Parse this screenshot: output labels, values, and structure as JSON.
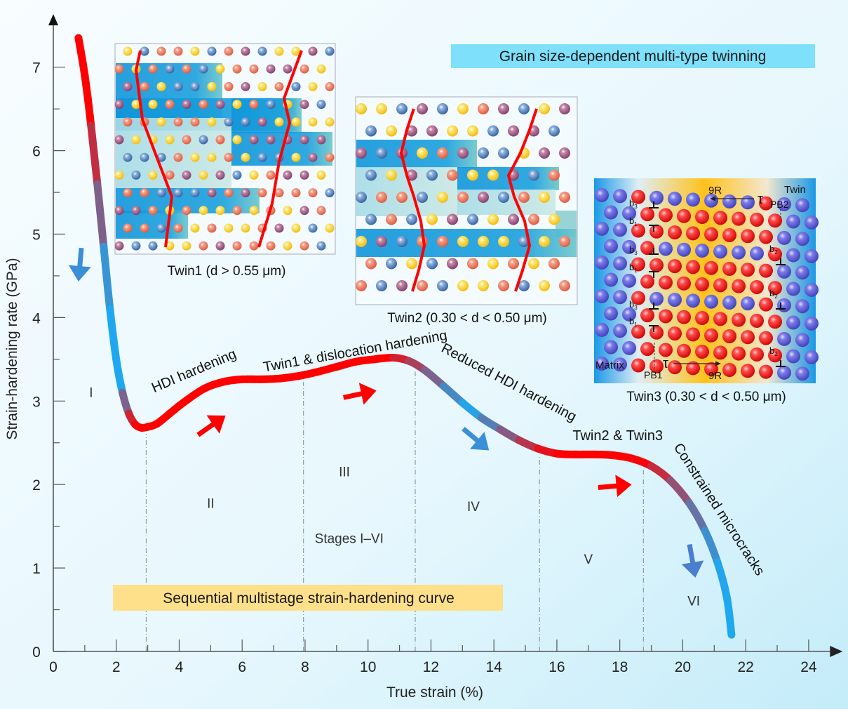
{
  "chart_data": {
    "type": "line",
    "title": "",
    "xlabel": "True strain (%)",
    "ylabel": "Strain-hardening rate (GPa)",
    "xlim": [
      0,
      24.5
    ],
    "ylim": [
      0,
      7.4
    ],
    "xticks": [
      0,
      2,
      4,
      6,
      8,
      10,
      12,
      14,
      16,
      18,
      20,
      22,
      24
    ],
    "xminor": [
      1,
      3,
      5,
      7,
      9,
      11,
      13,
      15,
      17,
      19,
      21,
      23
    ],
    "yticks": [
      0,
      1,
      2,
      3,
      4,
      5,
      6,
      7
    ],
    "yminor": [
      0.5,
      1.5,
      2.5,
      3.5,
      4.5,
      5.5,
      6.5
    ],
    "grid": false,
    "series": [
      {
        "name": "Strain-hardening curve",
        "x": [
          0.8,
          1.0,
          1.2,
          1.4,
          1.6,
          1.8,
          2.0,
          2.2,
          2.4,
          2.6,
          2.8,
          3.0,
          3.3,
          3.7,
          4.2,
          4.8,
          5.4,
          6.0,
          6.6,
          7.2,
          7.8,
          8.4,
          9.0,
          9.6,
          10.2,
          10.8,
          11.3,
          11.8,
          12.4,
          13.0,
          13.6,
          14.2,
          14.8,
          15.4,
          16.0,
          16.6,
          17.2,
          17.8,
          18.4,
          19.0,
          19.6,
          20.2,
          20.7,
          21.1,
          21.4,
          21.55
        ],
        "y": [
          7.35,
          6.9,
          6.3,
          5.6,
          4.85,
          4.1,
          3.5,
          3.1,
          2.85,
          2.72,
          2.68,
          2.69,
          2.73,
          2.85,
          3.0,
          3.15,
          3.23,
          3.26,
          3.26,
          3.27,
          3.3,
          3.35,
          3.41,
          3.47,
          3.5,
          3.52,
          3.48,
          3.37,
          3.18,
          2.98,
          2.8,
          2.66,
          2.53,
          2.43,
          2.37,
          2.36,
          2.36,
          2.35,
          2.31,
          2.22,
          2.05,
          1.78,
          1.45,
          1.07,
          0.65,
          0.2
        ]
      }
    ],
    "stage_boundaries": [
      2.95,
      7.95,
      11.5,
      15.45,
      18.75
    ],
    "stages": [
      {
        "label": "I",
        "x": 1.2,
        "y": 3.05
      },
      {
        "label": "II",
        "x": 5.0,
        "y": 1.72
      },
      {
        "label": "III",
        "x": 9.25,
        "y": 2.1
      },
      {
        "label": "IV",
        "x": 13.35,
        "y": 1.68
      },
      {
        "label": "V",
        "x": 17.0,
        "y": 1.05
      },
      {
        "label": "VI",
        "x": 20.35,
        "y": 0.55
      }
    ],
    "stages_note": {
      "text": "Stages I–VI",
      "x": 9.4,
      "y": 1.35
    },
    "annotations": [
      {
        "text": "HDI hardening",
        "x": 3.2,
        "y": 3.1,
        "angle": -23
      },
      {
        "text": "Twin1 & dislocation hardening",
        "x": 6.7,
        "y": 3.35,
        "angle": -10
      },
      {
        "text": "Reduced HDI hardening",
        "x": 12.3,
        "y": 3.6,
        "angle": 28
      },
      {
        "text": "Twin2 & Twin3",
        "x": 16.5,
        "y": 2.53,
        "angle": 0
      },
      {
        "text": "Constrained microcracks",
        "x": 19.7,
        "y": 2.45,
        "angle": 57
      }
    ],
    "arrows": [
      {
        "direction": "down",
        "color": "#3a8fd6",
        "x": 0.85,
        "y": 4.65
      },
      {
        "direction": "up-right",
        "color": "#ff0000",
        "x": 5.0,
        "y": 2.7
      },
      {
        "direction": "right",
        "color": "#ff0000",
        "x": 9.7,
        "y": 3.08
      },
      {
        "direction": "down-right",
        "color": "#3a8fd6",
        "x": 13.4,
        "y": 2.55
      },
      {
        "direction": "right",
        "color": "#ff0000",
        "x": 17.8,
        "y": 1.98
      },
      {
        "direction": "down",
        "color": "#4a7fcf",
        "x": 20.3,
        "y": 1.1
      }
    ],
    "gradient_colors": {
      "red": "#ff0000",
      "blue": "#1ea8f0"
    }
  },
  "banners": {
    "top": {
      "text": "Grain  size-dependent multi-type twinning",
      "color": "#7ee0fa"
    },
    "bottom": {
      "text": "Sequential multistage strain-hardening curve",
      "color": "#ffe08a"
    }
  },
  "insets": {
    "twin1": {
      "caption": "Twin1 (d > 0.55 μm)"
    },
    "twin2": {
      "caption": "Twin2 (0.30 < d < 0.50 μm)"
    },
    "twin3": {
      "caption": "Twin3 (0.30 < d < 0.50 μm)",
      "labels": {
        "matrix": "Matrix",
        "twin": "Twin",
        "pb1": "PB1",
        "pb2": "PB2",
        "nine_r_top": "9R",
        "nine_r_bottom": "9R",
        "tau_top": "τ",
        "tau_bottom": "τ",
        "b3": "b",
        "b3_sub": "3",
        "b1": "b",
        "b1_sub": "1",
        "b2": "b",
        "b2_sub": "2"
      }
    }
  }
}
